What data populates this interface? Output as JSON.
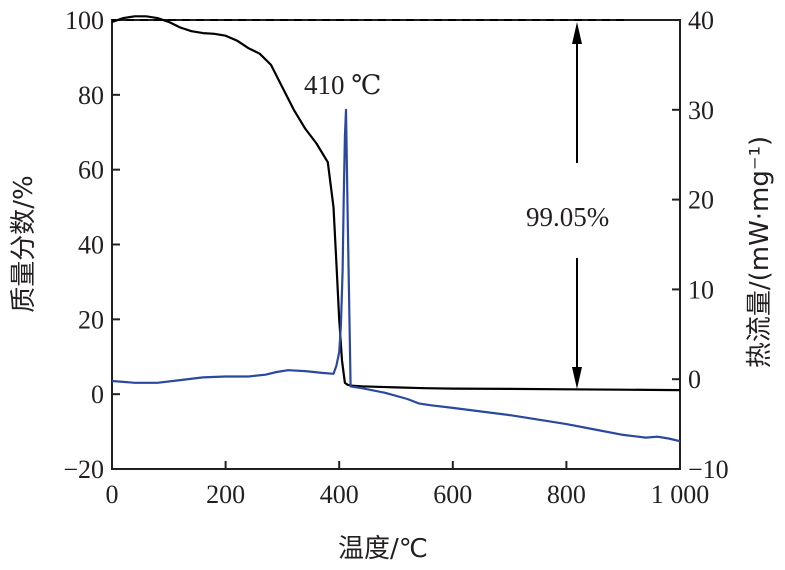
{
  "chart_data": {
    "type": "line",
    "x_axis": {
      "label": "温度/℃",
      "range": [
        0,
        1000
      ],
      "ticks": [
        0,
        200,
        400,
        600,
        800,
        1000
      ],
      "tick_labels": [
        "0",
        "200",
        "400",
        "600",
        "800",
        "1 000"
      ]
    },
    "y_axis_left": {
      "label": "质量分数/%",
      "range": [
        -20,
        100
      ],
      "ticks": [
        -20,
        0,
        20,
        40,
        60,
        80,
        100
      ],
      "tick_labels": [
        "−20",
        "0",
        "20",
        "40",
        "60",
        "80",
        "100"
      ]
    },
    "y_axis_right": {
      "label": "热流量/(mW·mg⁻¹)",
      "range": [
        -10,
        40
      ],
      "ticks": [
        -10,
        0,
        10,
        20,
        30,
        40
      ],
      "tick_labels": [
        "−10",
        "0",
        "10",
        "20",
        "30",
        "40"
      ]
    },
    "series": [
      {
        "axis": "left",
        "color": "#000000",
        "x": [
          0,
          20,
          40,
          60,
          80,
          100,
          120,
          140,
          160,
          180,
          200,
          220,
          240,
          260,
          280,
          300,
          320,
          340,
          360,
          380,
          390,
          395,
          400,
          405,
          410,
          415,
          420,
          440,
          460,
          500,
          550,
          600,
          700,
          800,
          900,
          1000
        ],
        "y": [
          99.5,
          100.5,
          101.0,
          101.0,
          100.5,
          99.5,
          98.0,
          97.0,
          96.5,
          96.3,
          95.8,
          94.5,
          92.5,
          91.0,
          88.0,
          82.0,
          76.0,
          71.0,
          67.0,
          62.0,
          50.0,
          35.0,
          20.0,
          9.0,
          3.0,
          2.5,
          2.3,
          2.1,
          2.0,
          1.8,
          1.6,
          1.5,
          1.4,
          1.3,
          1.2,
          1.1
        ]
      },
      {
        "axis": "right",
        "color": "#2b48a0",
        "x": [
          0,
          40,
          80,
          120,
          160,
          200,
          240,
          270,
          290,
          310,
          340,
          370,
          390,
          395,
          400,
          403,
          406,
          408,
          410,
          412,
          415,
          420,
          440,
          480,
          520,
          540,
          560,
          600,
          650,
          700,
          750,
          800,
          850,
          900,
          940,
          960,
          980,
          1000
        ],
        "y": [
          -0.2,
          -0.4,
          -0.4,
          -0.1,
          0.2,
          0.3,
          0.3,
          0.5,
          0.8,
          1.0,
          0.9,
          0.7,
          0.6,
          1.5,
          3.0,
          6.0,
          12.0,
          20.0,
          27.0,
          30.0,
          18.0,
          -0.8,
          -1.0,
          -1.5,
          -2.2,
          -2.7,
          -2.9,
          -3.2,
          -3.6,
          -4.0,
          -4.5,
          -5.0,
          -5.6,
          -6.2,
          -6.5,
          -6.4,
          -6.6,
          -6.9
        ]
      }
    ],
    "reference_line": {
      "style": "dashed",
      "y_left": 100,
      "x_range": [
        0,
        910
      ]
    },
    "annotations": {
      "peak": "410 ℃",
      "mass_loss": "99.05%"
    }
  }
}
